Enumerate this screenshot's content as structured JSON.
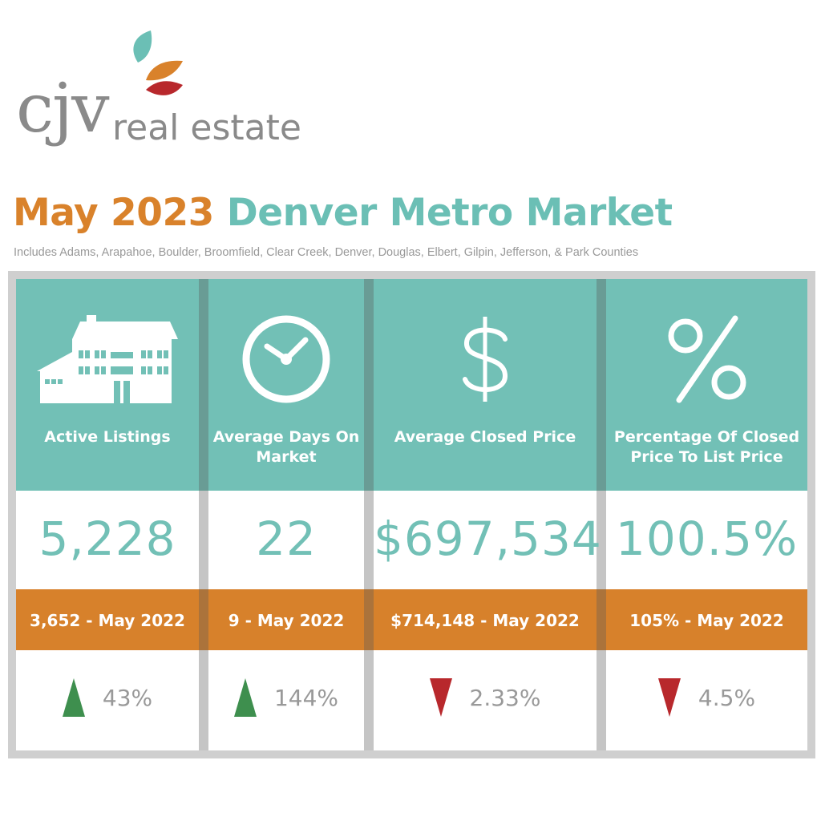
{
  "brand": {
    "logo_mark": "cjv",
    "logo_subtext": "real estate",
    "leaf_colors": [
      "#6bbfb5",
      "#d9822b",
      "#b8282c"
    ]
  },
  "header": {
    "title_part1": "May 2023",
    "title_part2": "Denver Metro Market",
    "subtitle": "Includes Adams, Arapahoe, Boulder, Broomfield, Clear Creek, Denver, Douglas, Elbert, Gilpin, Jefferson, & Park Counties"
  },
  "colors": {
    "teal": "#72c0b6",
    "orange": "#d7812b",
    "up": "#3e8f4e",
    "down": "#b8282c",
    "text_gray": "#999999"
  },
  "metrics": [
    {
      "icon": "house-icon",
      "label": "Active Listings",
      "value": "5,228",
      "previous": "3,652 - May 2022",
      "direction": "up",
      "change": "43%"
    },
    {
      "icon": "clock-icon",
      "label": "Average Days On Market",
      "value": "22",
      "previous": "9 - May 2022",
      "direction": "up",
      "change": "144%"
    },
    {
      "icon": "dollar-icon",
      "label": "Average Closed Price",
      "value": "$697,534",
      "previous": "$714,148 - May 2022",
      "direction": "down",
      "change": "2.33%"
    },
    {
      "icon": "percent-icon",
      "label": "Percentage Of Closed Price To List Price",
      "value": "100.5%",
      "previous": "105% - May 2022",
      "direction": "down",
      "change": "4.5%"
    }
  ]
}
